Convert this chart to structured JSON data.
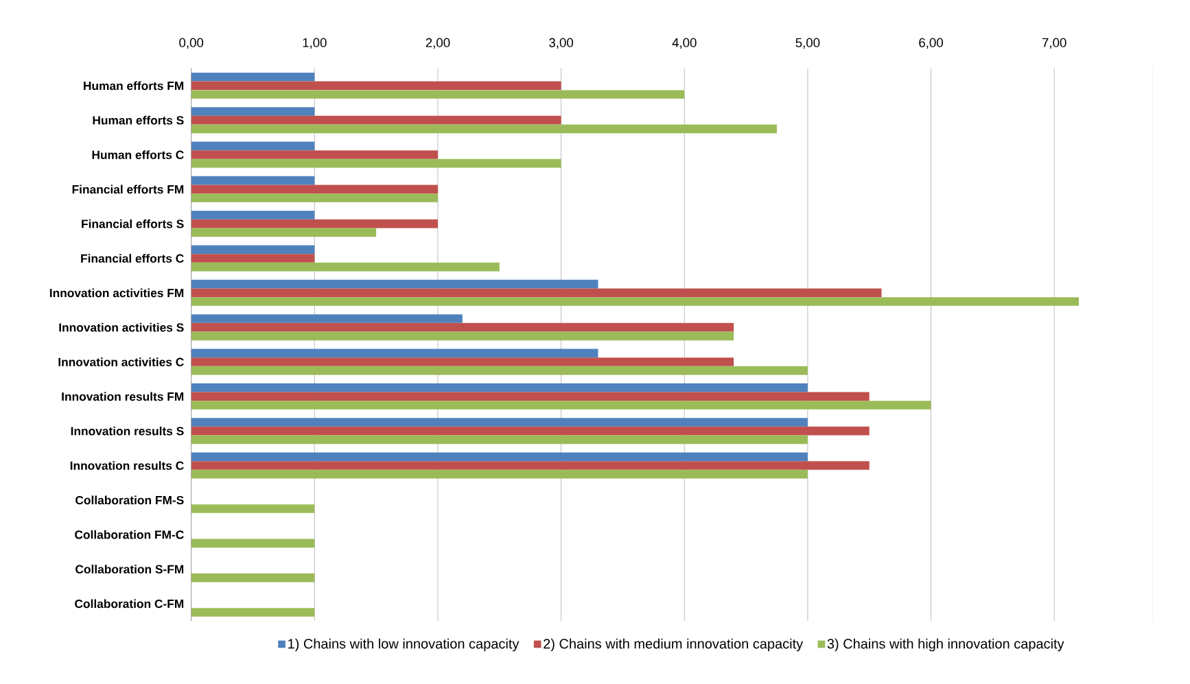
{
  "chart_data": {
    "type": "bar",
    "orientation": "horizontal",
    "categories": [
      "Human  efforts FM",
      "Human  efforts S",
      "Human  efforts C",
      "Financial  efforts FM",
      "Financial  efforts S",
      "Financial  efforts C",
      "Innovation activities FM",
      "Innovation activities S",
      "Innovation activities C",
      "Innovation results FM",
      "Innovation results S",
      "Innovation results C",
      "Collaboration FM-S",
      "Collaboration FM-C",
      "Collaboration S-FM",
      "Collaboration C-FM"
    ],
    "series": [
      {
        "name": "1) Chains with low innovation capacity",
        "color": "#4f81bd",
        "values": [
          1,
          1,
          1,
          1,
          1,
          1,
          3.3,
          2.2,
          3.3,
          5,
          5,
          5,
          null,
          null,
          null,
          null
        ]
      },
      {
        "name": "2) Chains with medium innovation capacity",
        "color": "#c0504d",
        "values": [
          3,
          3,
          2,
          2,
          2,
          1,
          5.6,
          4.4,
          4.4,
          5.5,
          5.5,
          5.5,
          null,
          null,
          null,
          null
        ]
      },
      {
        "name": "3) Chains with high innovation capacity",
        "color": "#9bbb59",
        "values": [
          4,
          4.75,
          3,
          2,
          1.5,
          2.5,
          7.2,
          4.4,
          5,
          6,
          5,
          5,
          1,
          1,
          1,
          1
        ]
      }
    ],
    "xlim": [
      0,
      7.8
    ],
    "xticks": [
      {
        "value": 0,
        "label": "0,00"
      },
      {
        "value": 1,
        "label": "1,00"
      },
      {
        "value": 2,
        "label": "2,00"
      },
      {
        "value": 3,
        "label": "3,00"
      },
      {
        "value": 4,
        "label": "4,00"
      },
      {
        "value": 5,
        "label": "5,00"
      },
      {
        "value": 6,
        "label": "6,00"
      },
      {
        "value": 7,
        "label": "7,00"
      }
    ],
    "grid": "x",
    "legend": "bottom"
  }
}
